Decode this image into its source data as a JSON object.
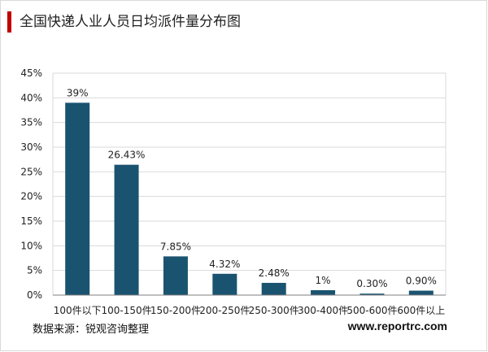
{
  "header": {
    "title": "全国快递人业人员日均派件量分布图"
  },
  "footer": {
    "source": "数据来源：锐观咨询整理",
    "website": "www.reportrc.com"
  },
  "colors": {
    "bar": "#1a5370",
    "grid": "#d9d9d9",
    "axis": "#7f7f7f",
    "accent": "#c00000"
  },
  "chart_data": {
    "type": "bar",
    "categories": [
      "100件以下",
      "100-150件",
      "150-200件",
      "200-250件",
      "250-300件",
      "300-400件",
      "500-600件",
      "600件以上"
    ],
    "values": [
      39,
      26.43,
      7.85,
      4.32,
      2.48,
      1,
      0.3,
      0.9
    ],
    "data_labels": [
      "39%",
      "26.43%",
      "7.85%",
      "4.32%",
      "2.48%",
      "1%",
      "0.30%",
      "0.90%"
    ],
    "yticks": [
      "0%",
      "5%",
      "10%",
      "15%",
      "20%",
      "25%",
      "30%",
      "35%",
      "40%",
      "45%"
    ],
    "ylim": [
      0,
      45
    ],
    "grid": true,
    "legend": "none"
  }
}
